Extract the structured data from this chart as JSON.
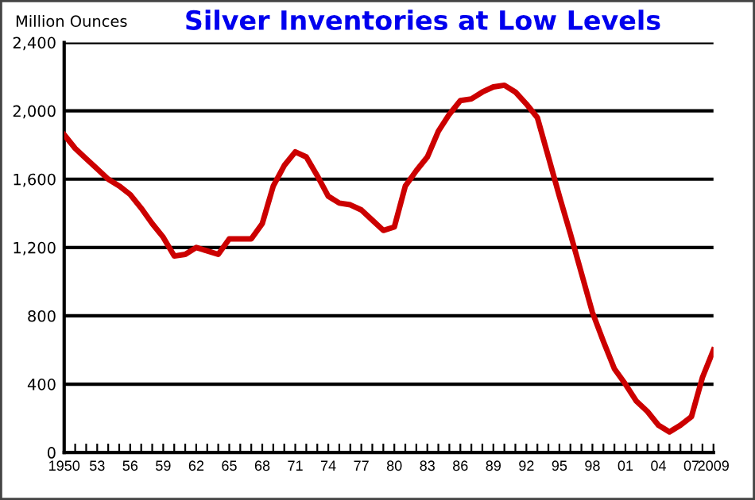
{
  "chart_data": {
    "type": "line",
    "title": "Silver Inventories at Low Levels",
    "ylabel": "Million Ounces",
    "x": [
      1950,
      1951,
      1952,
      1953,
      1954,
      1955,
      1956,
      1957,
      1958,
      1959,
      1960,
      1961,
      1962,
      1963,
      1964,
      1965,
      1966,
      1967,
      1968,
      1969,
      1970,
      1971,
      1972,
      1973,
      1974,
      1975,
      1976,
      1977,
      1978,
      1979,
      1980,
      1981,
      1982,
      1983,
      1984,
      1985,
      1986,
      1987,
      1988,
      1989,
      1990,
      1991,
      1992,
      1993,
      1994,
      1995,
      1996,
      1997,
      1998,
      1999,
      2000,
      2001,
      2002,
      2003,
      2004,
      2005,
      2006,
      2007,
      2008,
      2009
    ],
    "series": [
      {
        "color": "#cc0000",
        "values": [
          1860,
          1780,
          1720,
          1660,
          1600,
          1560,
          1510,
          1430,
          1340,
          1260,
          1150,
          1160,
          1200,
          1180,
          1160,
          1250,
          1250,
          1250,
          1340,
          1560,
          1680,
          1760,
          1730,
          1620,
          1500,
          1460,
          1450,
          1420,
          1360,
          1300,
          1320,
          1560,
          1650,
          1730,
          1880,
          1980,
          2060,
          2070,
          2110,
          2140,
          2150,
          2110,
          2040,
          1960,
          1730,
          1500,
          1280,
          1050,
          820,
          650,
          490,
          400,
          300,
          240,
          160,
          120,
          160,
          210,
          440,
          600
        ]
      }
    ],
    "xlim": [
      1950,
      2009
    ],
    "ylim": [
      0,
      2400
    ],
    "xticks": [
      1950,
      {
        "value": 1951,
        "label": null
      },
      {
        "value": 1952,
        "label": null
      },
      {
        "value": 1953,
        "label": "53"
      },
      {
        "value": 1954,
        "label": null
      },
      {
        "value": 1955,
        "label": null
      },
      {
        "value": 1956,
        "label": "56"
      },
      {
        "value": 1957,
        "label": null
      },
      {
        "value": 1958,
        "label": null
      },
      {
        "value": 1959,
        "label": "59"
      },
      {
        "value": 1960,
        "label": null
      },
      {
        "value": 1961,
        "label": null
      },
      {
        "value": 1962,
        "label": "62"
      },
      {
        "value": 1963,
        "label": null
      },
      {
        "value": 1964,
        "label": null
      },
      {
        "value": 1965,
        "label": "65"
      },
      {
        "value": 1966,
        "label": null
      },
      {
        "value": 1967,
        "label": null
      },
      {
        "value": 1968,
        "label": "68"
      },
      {
        "value": 1969,
        "label": null
      },
      {
        "value": 1970,
        "label": null
      },
      {
        "value": 1971,
        "label": "71"
      },
      {
        "value": 1972,
        "label": null
      },
      {
        "value": 1973,
        "label": null
      },
      {
        "value": 1974,
        "label": "74"
      },
      {
        "value": 1975,
        "label": null
      },
      {
        "value": 1976,
        "label": null
      },
      {
        "value": 1977,
        "label": "77"
      },
      {
        "value": 1978,
        "label": null
      },
      {
        "value": 1979,
        "label": null
      },
      {
        "value": 1980,
        "label": "80"
      },
      {
        "value": 1981,
        "label": null
      },
      {
        "value": 1982,
        "label": null
      },
      {
        "value": 1983,
        "label": "83"
      },
      {
        "value": 1984,
        "label": null
      },
      {
        "value": 1985,
        "label": null
      },
      {
        "value": 1986,
        "label": "86"
      },
      {
        "value": 1987,
        "label": null
      },
      {
        "value": 1988,
        "label": null
      },
      {
        "value": 1989,
        "label": "89"
      },
      {
        "value": 1990,
        "label": null
      },
      {
        "value": 1991,
        "label": null
      },
      {
        "value": 1992,
        "label": "92"
      },
      {
        "value": 1993,
        "label": null
      },
      {
        "value": 1994,
        "label": null
      },
      {
        "value": 1995,
        "label": "95"
      },
      {
        "value": 1996,
        "label": null
      },
      {
        "value": 1997,
        "label": null
      },
      {
        "value": 1998,
        "label": "98"
      },
      {
        "value": 1999,
        "label": null
      },
      {
        "value": 2000,
        "label": null
      },
      {
        "value": 2001,
        "label": "01"
      },
      {
        "value": 2002,
        "label": null
      },
      {
        "value": 2003,
        "label": null
      },
      {
        "value": 2004,
        "label": "04"
      },
      {
        "value": 2005,
        "label": null
      },
      {
        "value": 2006,
        "label": null
      },
      {
        "value": 2007,
        "label": "07"
      },
      {
        "value": 2008,
        "label": null
      },
      {
        "value": 2009,
        "label": "2009"
      }
    ],
    "yticks": [
      0,
      {
        "value": 400,
        "label": "400"
      },
      {
        "value": 800,
        "label": "800"
      },
      {
        "value": 1200,
        "label": "1,200"
      },
      {
        "value": 1600,
        "label": "1,600"
      },
      {
        "value": 2000,
        "label": "2,000"
      },
      {
        "value": 2400,
        "label": "2,400"
      }
    ],
    "grid": "y",
    "legend": false,
    "marker": "none",
    "line_style": "solid"
  }
}
